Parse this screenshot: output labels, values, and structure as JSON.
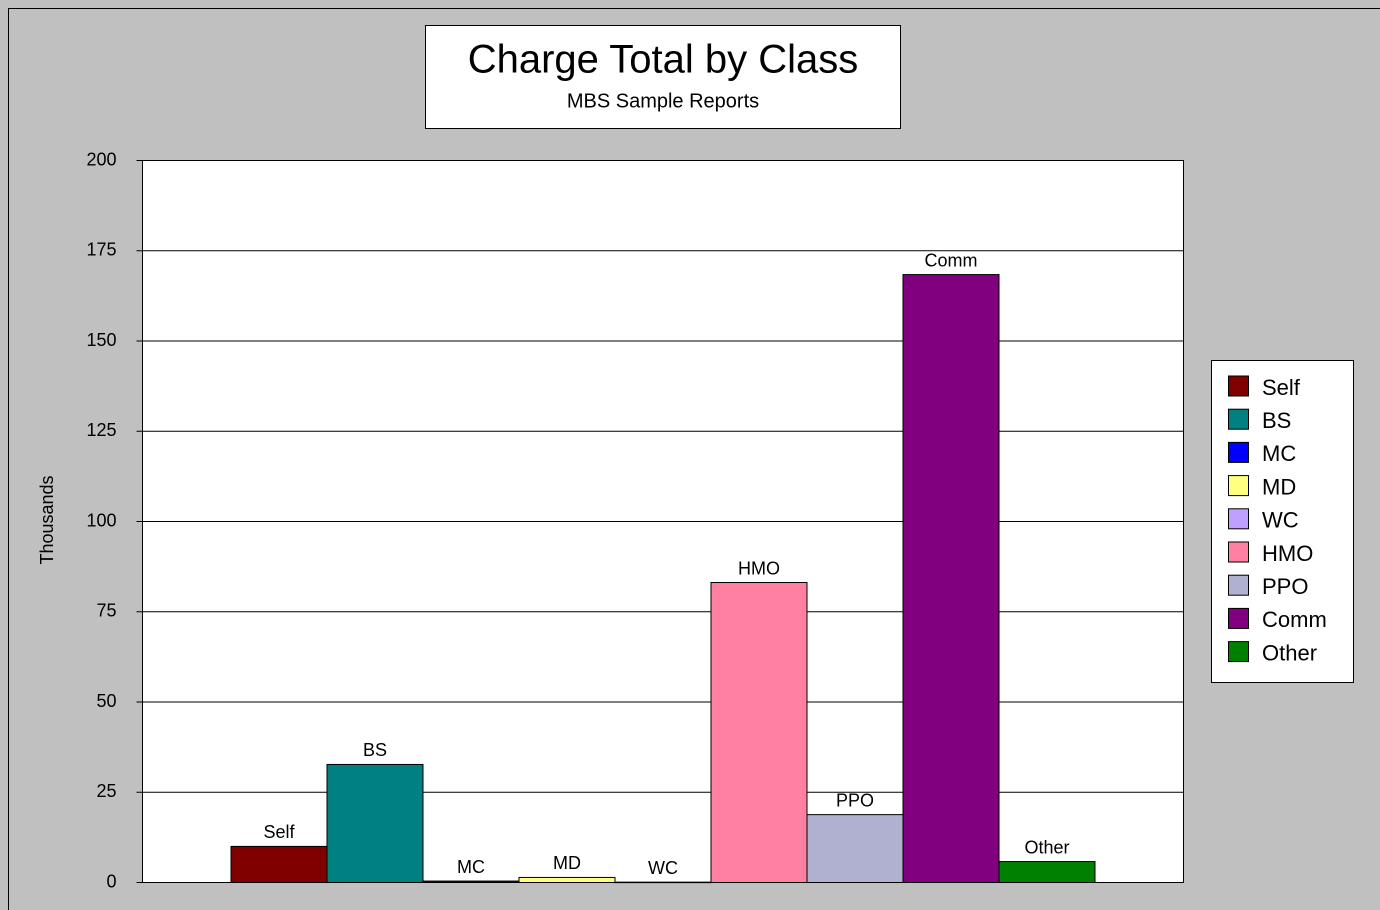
{
  "chart_data": {
    "type": "bar",
    "title": "Charge Total by Class",
    "subtitle": "MBS Sample Reports",
    "y_label": "Thousands",
    "series": [
      {
        "name": "Self",
        "color": "#800000",
        "values": [
          10
        ]
      },
      {
        "name": "BS",
        "color": "#008080",
        "values": [
          32.7
        ]
      },
      {
        "name": "MC",
        "color": "#0000ff",
        "values": [
          0.4
        ]
      },
      {
        "name": "MD",
        "color": "#ffff80",
        "values": [
          1.4
        ]
      },
      {
        "name": "WC",
        "color": "#c0a0ff",
        "values": [
          0.1
        ]
      },
      {
        "name": "HMO",
        "color": "#ff80a0",
        "values": [
          83.1
        ]
      },
      {
        "name": "PPO",
        "color": "#b0b0d0",
        "values": [
          18.8
        ]
      },
      {
        "name": "Comm",
        "color": "#800080",
        "values": [
          168.4
        ]
      },
      {
        "name": "Other",
        "color": "#008000",
        "values": [
          5.8
        ]
      }
    ],
    "ylim": [
      0,
      200
    ],
    "yticks": [
      0,
      25,
      50,
      75,
      100,
      125,
      150,
      175,
      200
    ],
    "grid": true,
    "legend": "right"
  }
}
